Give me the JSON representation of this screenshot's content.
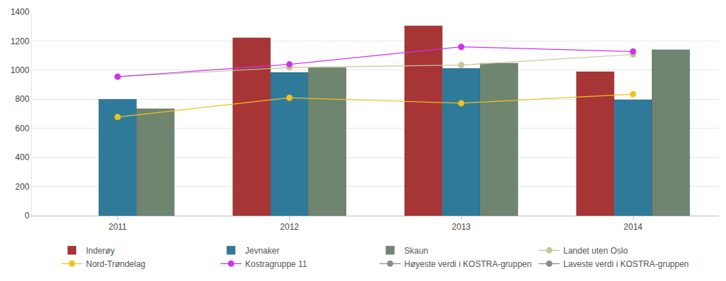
{
  "chart_data": {
    "type": "bar",
    "categories": [
      "2011",
      "2012",
      "2013",
      "2014"
    ],
    "series": [
      {
        "name": "Inderøy",
        "type": "bar",
        "color": "#a83536",
        "values": [
          null,
          1222,
          1305,
          990
        ]
      },
      {
        "name": "Jevnaker",
        "type": "bar",
        "color": "#2f7a9b",
        "values": [
          800,
          985,
          1012,
          797
        ]
      },
      {
        "name": "Skaun",
        "type": "bar",
        "color": "#6f8570",
        "values": [
          735,
          1018,
          1048,
          1140
        ]
      },
      {
        "name": "Landet uten Oslo",
        "type": "line",
        "marker": "circle",
        "color": "#c4c79b",
        "values": [
          955,
          1018,
          1035,
          1108
        ]
      },
      {
        "name": "Nord-Trøndelag",
        "type": "line",
        "marker": "circle",
        "color": "#efc319",
        "values": [
          678,
          810,
          773,
          835
        ]
      },
      {
        "name": "Kostragruppe 11",
        "type": "line",
        "marker": "circle",
        "color": "#cc33ee",
        "values": [
          955,
          1040,
          1160,
          1128
        ]
      },
      {
        "name": "Høyeste verdi i KOSTRA-gruppen",
        "type": "line",
        "marker": "circle",
        "color": "#8c8c8c",
        "values": [
          null,
          null,
          null,
          null
        ]
      },
      {
        "name": "Laveste verdi i KOSTRA-gruppen",
        "type": "line",
        "marker": "circle",
        "color": "#8c8c8c",
        "values": [
          null,
          null,
          null,
          null
        ]
      }
    ],
    "ylim": [
      0,
      1400
    ],
    "yticks": [
      0,
      200,
      400,
      600,
      800,
      1000,
      1200,
      1400
    ],
    "grid": true,
    "legend": "bottom"
  }
}
